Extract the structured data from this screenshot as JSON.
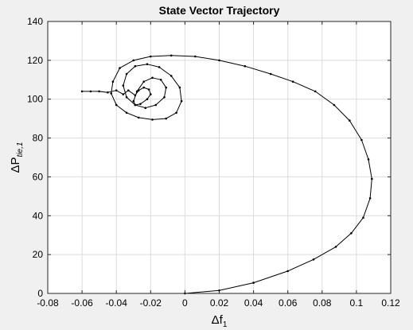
{
  "chart_data": {
    "type": "line",
    "title": "State Vector  Trajectory",
    "xlabel": {
      "symbol": "Δf",
      "subscript": "1"
    },
    "ylabel": {
      "symbol": "ΔP",
      "subscript": "tie,1"
    },
    "xlim": [
      -0.08,
      0.12
    ],
    "ylim": [
      0,
      140
    ],
    "x_ticks": [
      "-0.08",
      "-0.06",
      "-0.04",
      "-0.02",
      "0",
      "0.02",
      "0.04",
      "0.06",
      "0.08",
      "0.1",
      "0.12"
    ],
    "y_ticks": [
      "0",
      "20",
      "40",
      "60",
      "80",
      "100",
      "120",
      "140"
    ],
    "grid": true,
    "series": [
      {
        "color": "#000000",
        "marker": "dot",
        "x": [
          0.0,
          0.02,
          0.04,
          0.06,
          0.075,
          0.088,
          0.097,
          0.104,
          0.108,
          0.109,
          0.107,
          0.103,
          0.096,
          0.087,
          0.076,
          0.063,
          0.05,
          0.035,
          0.02,
          0.006,
          -0.008,
          -0.02,
          -0.03,
          -0.038,
          -0.042,
          -0.043,
          -0.04,
          -0.034,
          -0.027,
          -0.019,
          -0.011,
          -0.005,
          -0.002,
          -0.003,
          -0.008,
          -0.015,
          -0.022,
          -0.029,
          -0.034,
          -0.036,
          -0.034,
          -0.029,
          -0.023,
          -0.017,
          -0.012,
          -0.011,
          -0.014,
          -0.019,
          -0.024,
          -0.028,
          -0.03,
          -0.029,
          -0.026,
          -0.022,
          -0.02,
          -0.021,
          -0.024,
          -0.027,
          -0.029,
          -0.033,
          -0.036,
          -0.04,
          -0.045,
          -0.05,
          -0.055,
          -0.06
        ],
        "y": [
          0.0,
          1.5,
          5.5,
          11.5,
          17.5,
          24.0,
          31.0,
          39.0,
          49.0,
          59.0,
          69.0,
          79.0,
          89.0,
          97.0,
          104.0,
          109.0,
          113.0,
          117.0,
          120.0,
          122.0,
          122.5,
          122.0,
          120.0,
          116.0,
          109.0,
          103.0,
          97.0,
          93.0,
          90.5,
          89.5,
          90.0,
          93.0,
          99.0,
          106.0,
          112.0,
          116.5,
          118.0,
          117.0,
          113.0,
          107.0,
          101.0,
          97.0,
          95.5,
          97.0,
          101.0,
          106.0,
          110.0,
          111.0,
          109.0,
          104.0,
          99.0,
          97.0,
          97.5,
          100.0,
          102.5,
          105.0,
          106.0,
          104.5,
          102.0,
          104.5,
          102.5,
          104.5,
          103.5,
          104.0,
          104.0,
          104.0
        ]
      }
    ]
  }
}
